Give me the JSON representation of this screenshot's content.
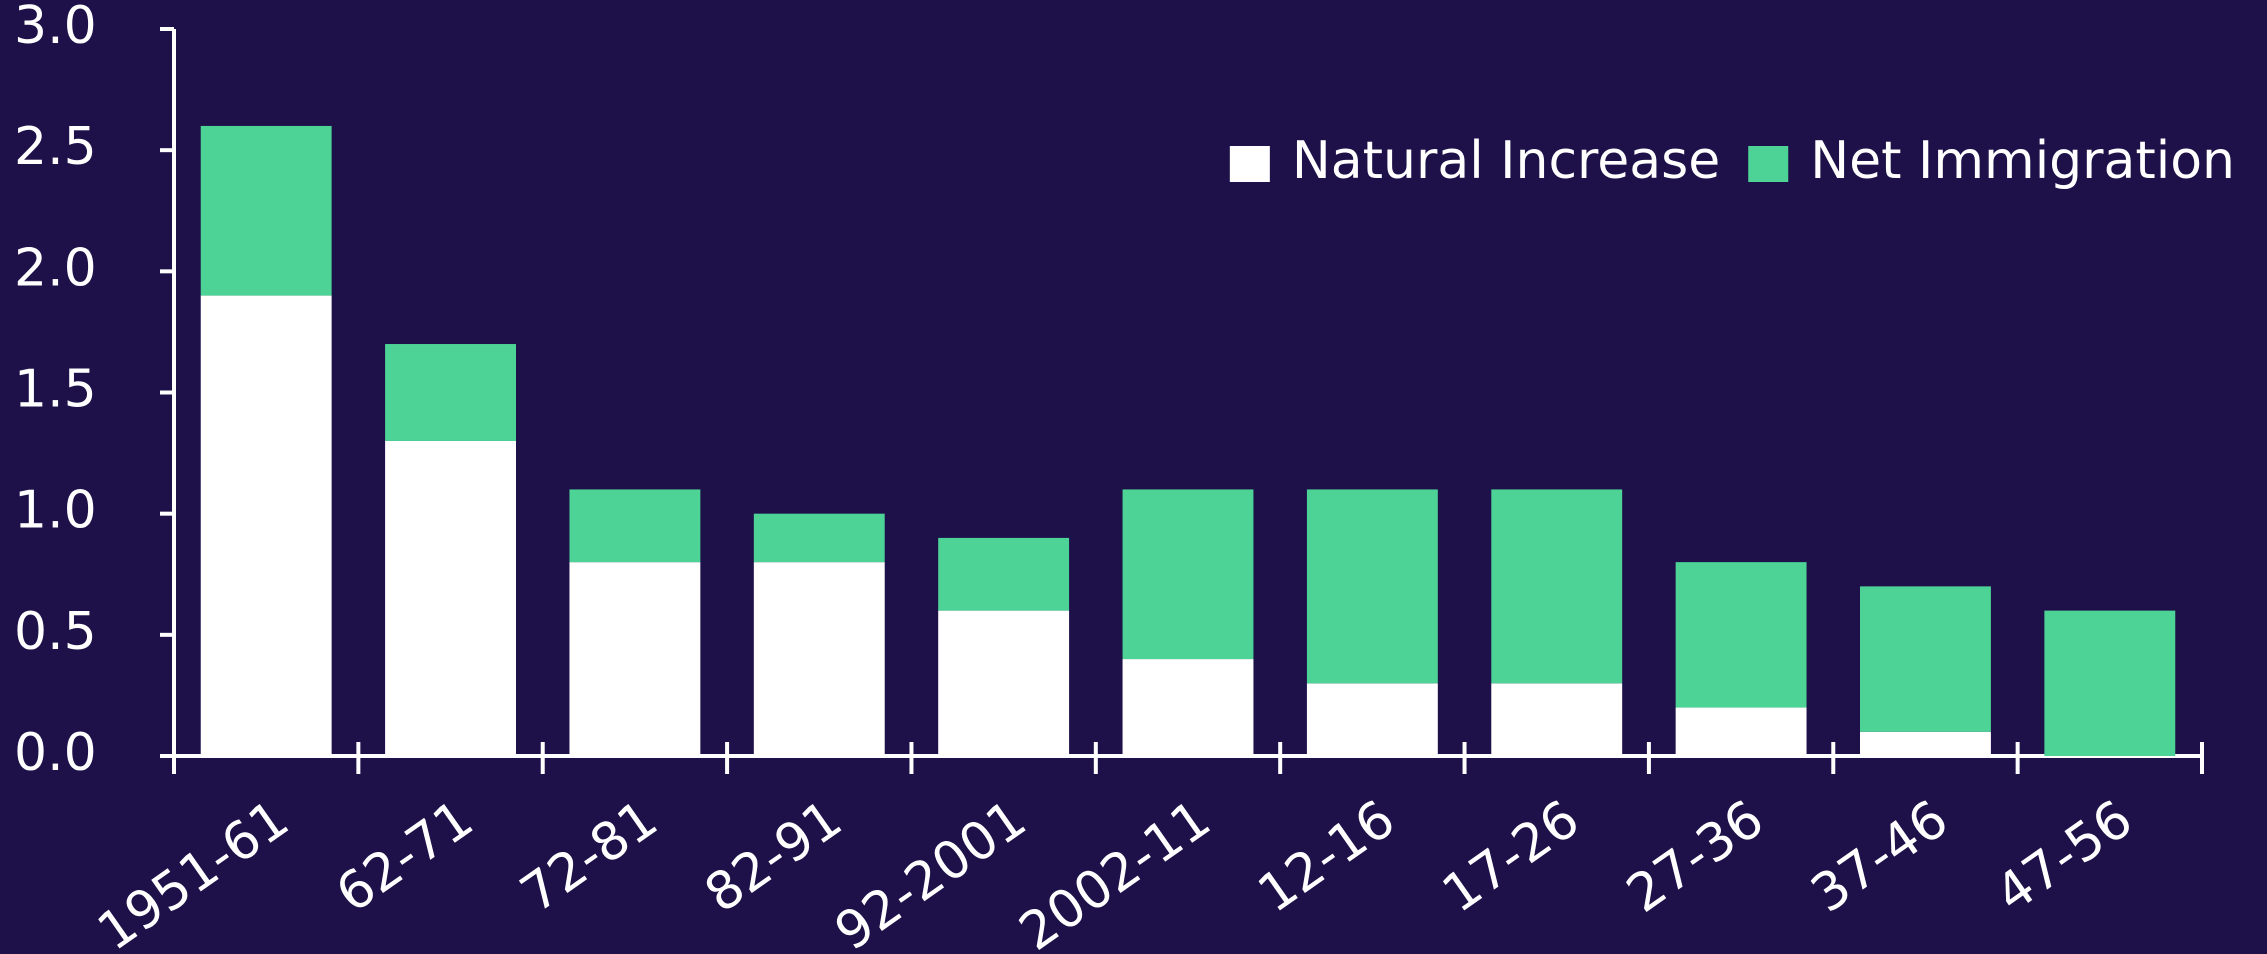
{
  "chart_data": {
    "type": "stacked_bar",
    "categories": [
      "1951-61",
      "62-71",
      "72-81",
      "82-91",
      "92-2001",
      "2002-11",
      "12-16",
      "17-26",
      "27-36",
      "37-46",
      "47-56"
    ],
    "series": [
      {
        "name": "Natural Increase",
        "color": "#ffffff",
        "values": [
          1.9,
          1.3,
          0.8,
          0.8,
          0.6,
          0.4,
          0.3,
          0.3,
          0.2,
          0.1,
          0.0
        ]
      },
      {
        "name": "Net Immigration",
        "color": "#4dd396",
        "values": [
          0.7,
          0.4,
          0.3,
          0.2,
          0.3,
          0.7,
          0.8,
          0.8,
          0.6,
          0.6,
          0.6
        ]
      }
    ],
    "ylim": [
      0,
      3.0
    ],
    "yticks": [
      {
        "value": 0,
        "label": "0.0"
      },
      0.5,
      {
        "value": 1,
        "label": "1.0"
      },
      1.5,
      {
        "value": 2,
        "label": "2.0"
      },
      2.5,
      {
        "value": 3,
        "label": "3.0"
      }
    ],
    "legend": "upper right"
  }
}
